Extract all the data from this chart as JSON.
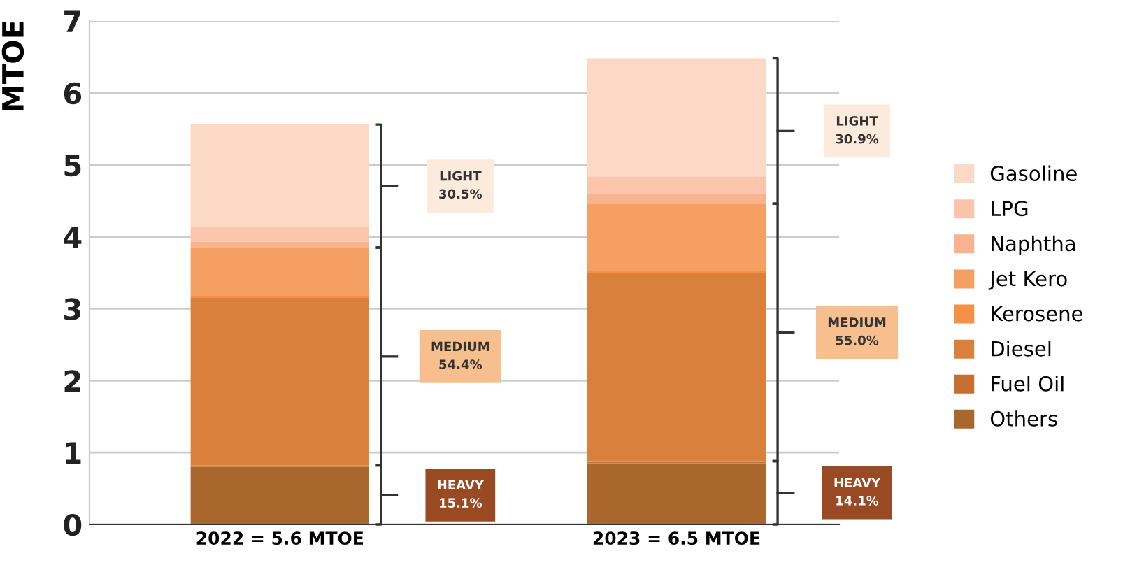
{
  "chart_data": {
    "type": "bar",
    "stacked": true,
    "ylabel": "MTOE",
    "categories": [
      "2022 = 5.6 MTOE",
      "2023 = 6.5 MTOE"
    ],
    "series": [
      {
        "name": "Others",
        "color": "#a9662d",
        "values": [
          0.8,
          0.85
        ]
      },
      {
        "name": "Fuel Oil",
        "color": "#c46f30",
        "values": [
          0.02,
          0.03
        ]
      },
      {
        "name": "Diesel",
        "color": "#d9803c",
        "values": [
          2.33,
          2.61
        ]
      },
      {
        "name": "Kerosene",
        "color": "#f39247",
        "values": [
          0.02,
          0.03
        ]
      },
      {
        "name": "Jet Kero",
        "color": "#f69f63",
        "values": [
          0.68,
          0.94
        ]
      },
      {
        "name": "Naphtha",
        "color": "#f8b48f",
        "values": [
          0.08,
          0.13
        ]
      },
      {
        "name": "LPG",
        "color": "#fac5aa",
        "values": [
          0.21,
          0.25
        ]
      },
      {
        "name": "Gasoline",
        "color": "#fbd9c5",
        "values": [
          1.42,
          1.64
        ]
      }
    ],
    "ylim": [
      0,
      7
    ],
    "yticks": [
      0,
      1,
      2,
      3,
      4,
      5,
      6,
      7
    ],
    "grid": "y",
    "legend": "right",
    "annotations": [
      "LIGHT\n30.5%",
      "MEDIUM\n54.4%",
      "HEAVY\n15.1%",
      "LIGHT\n30.9%",
      "MEDIUM\n55.0%",
      "HEAVY\n14.1%"
    ]
  }
}
